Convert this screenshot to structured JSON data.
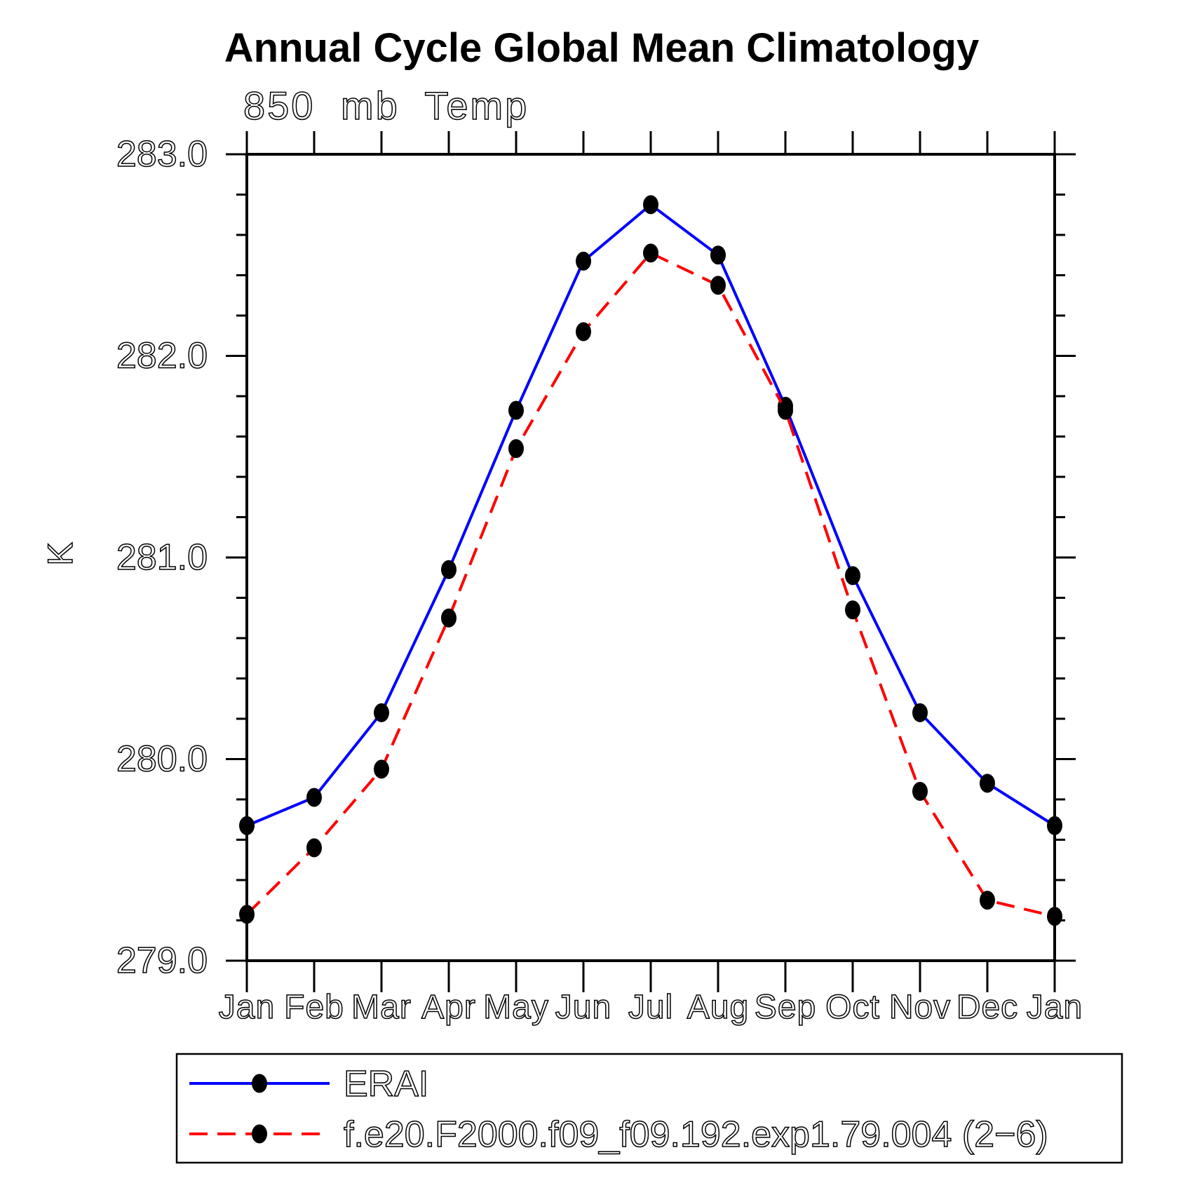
{
  "chart_data": {
    "type": "line",
    "title": "Annual Cycle Global Mean Climatology",
    "subtitle": "850 mb Temp",
    "ylabel": "K",
    "x_categories": [
      "Jan",
      "Feb",
      "Mar",
      "Apr",
      "May",
      "Jun",
      "Jul",
      "Aug",
      "Sep",
      "Oct",
      "Nov",
      "Dec",
      "Jan"
    ],
    "ylim": [
      279.0,
      283.0
    ],
    "ytick_major_step": 1.0,
    "ytick_minor_step": 0.2,
    "ytick_labels": [
      "279.0",
      "280.0",
      "281.0",
      "282.0",
      "283.0"
    ],
    "grid": false,
    "legend_position": "bottom-left-box",
    "series": [
      {
        "name": "ERAI",
        "color": "#0000ff",
        "line_style": "solid",
        "marker": "filled-circle",
        "marker_color": "#000000",
        "values": [
          279.67,
          279.81,
          280.23,
          280.94,
          281.73,
          282.47,
          282.75,
          282.5,
          281.75,
          280.91,
          280.23,
          279.88,
          279.67
        ]
      },
      {
        "name": "f.e20.F2000.f09_f09.192.exp1.79.004 (2−6)",
        "color": "#ff0000",
        "line_style": "dashed",
        "marker": "filled-circle",
        "marker_color": "#000000",
        "values": [
          279.23,
          279.56,
          279.95,
          280.7,
          281.54,
          282.12,
          282.51,
          282.35,
          281.73,
          280.74,
          279.84,
          279.3,
          279.22
        ]
      }
    ],
    "axis_color": "#000000",
    "background_color": "#ffffff"
  }
}
